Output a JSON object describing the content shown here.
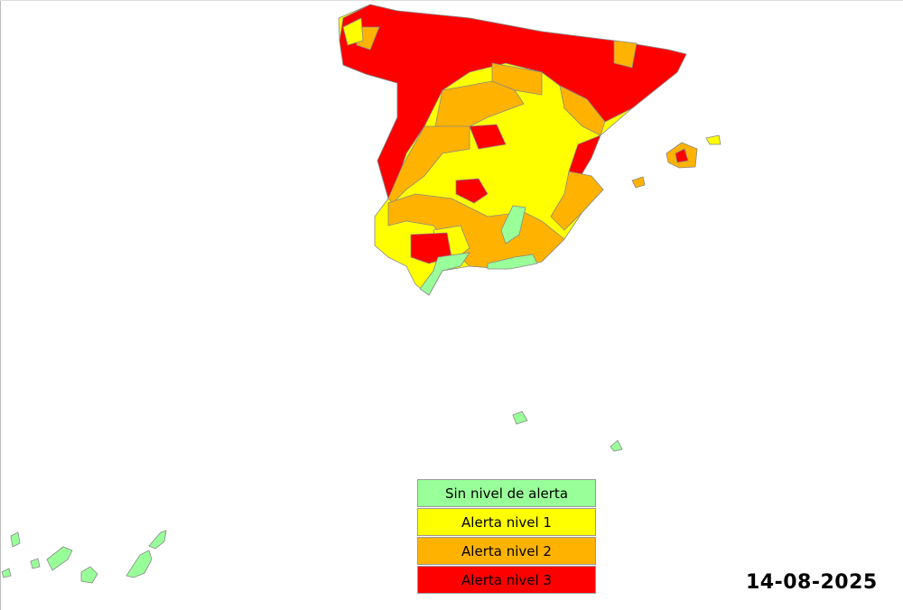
{
  "legend": [
    {
      "label": "Sin nivel de alerta",
      "color": "#99ff99"
    },
    {
      "label": "Alerta nivel 1",
      "color": "#ffff00"
    },
    {
      "label": "Alerta nivel 2",
      "color": "#ffb300"
    },
    {
      "label": "Alerta nivel 3",
      "color": "#ff0000"
    }
  ],
  "date": "14-08-2025"
}
